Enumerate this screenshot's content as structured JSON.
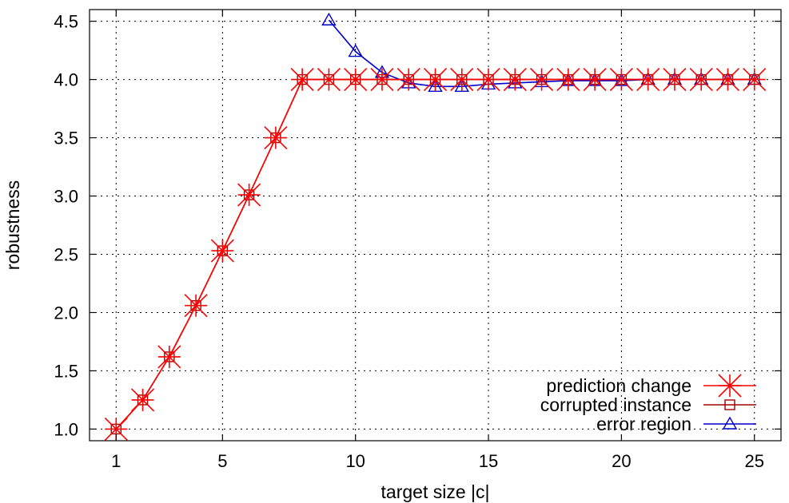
{
  "chart_data": {
    "type": "line",
    "title": "",
    "xlabel": "target size |c|",
    "ylabel": "robustness",
    "xlim": [
      0,
      26
    ],
    "ylim": [
      0.9,
      4.6
    ],
    "x_ticks": [
      1,
      5,
      10,
      15,
      20,
      25
    ],
    "y_ticks": [
      "1.0",
      "1.5",
      "2.0",
      "2.5",
      "3.0",
      "3.5",
      "4.0",
      "4.5"
    ],
    "grid": true,
    "legend_position": "bottom-right",
    "series": [
      {
        "name": "prediction change",
        "color": "#ff0000",
        "marker": "star",
        "x": [
          1,
          2,
          3,
          4,
          5,
          6,
          7,
          8,
          9,
          10,
          11,
          12,
          13,
          14,
          15,
          16,
          17,
          18,
          19,
          20,
          21,
          22,
          23,
          24,
          25
        ],
        "y": [
          1.0,
          1.25,
          1.62,
          2.06,
          2.53,
          3.01,
          3.5,
          4.0,
          4.0,
          4.0,
          4.0,
          4.0,
          4.0,
          4.0,
          4.0,
          4.0,
          4.0,
          4.0,
          4.0,
          4.0,
          4.0,
          4.0,
          4.0,
          4.0,
          4.0
        ]
      },
      {
        "name": "corrupted instance",
        "color": "#a00000",
        "marker": "square",
        "x": [
          1,
          2,
          3,
          4,
          5,
          6,
          7,
          8,
          9,
          10,
          11,
          12,
          13,
          14,
          15,
          16,
          17,
          18,
          19,
          20,
          21,
          22,
          23,
          24,
          25
        ],
        "y": [
          1.0,
          1.25,
          1.62,
          2.06,
          2.53,
          3.01,
          3.5,
          4.0,
          4.0,
          4.0,
          4.0,
          4.0,
          4.0,
          4.0,
          4.0,
          4.0,
          4.0,
          4.0,
          4.0,
          4.0,
          4.0,
          4.0,
          4.0,
          4.0,
          4.0
        ]
      },
      {
        "name": "error region",
        "color": "#0000cc",
        "marker": "triangle",
        "x": [
          9,
          10,
          11,
          12,
          13,
          14,
          15,
          16,
          17,
          18,
          19,
          20,
          21,
          22,
          23,
          24,
          25
        ],
        "y": [
          4.51,
          4.24,
          4.06,
          3.97,
          3.94,
          3.94,
          3.96,
          3.97,
          3.98,
          3.99,
          3.99,
          3.99,
          4.0,
          4.0,
          4.0,
          4.0,
          4.0
        ]
      }
    ]
  }
}
